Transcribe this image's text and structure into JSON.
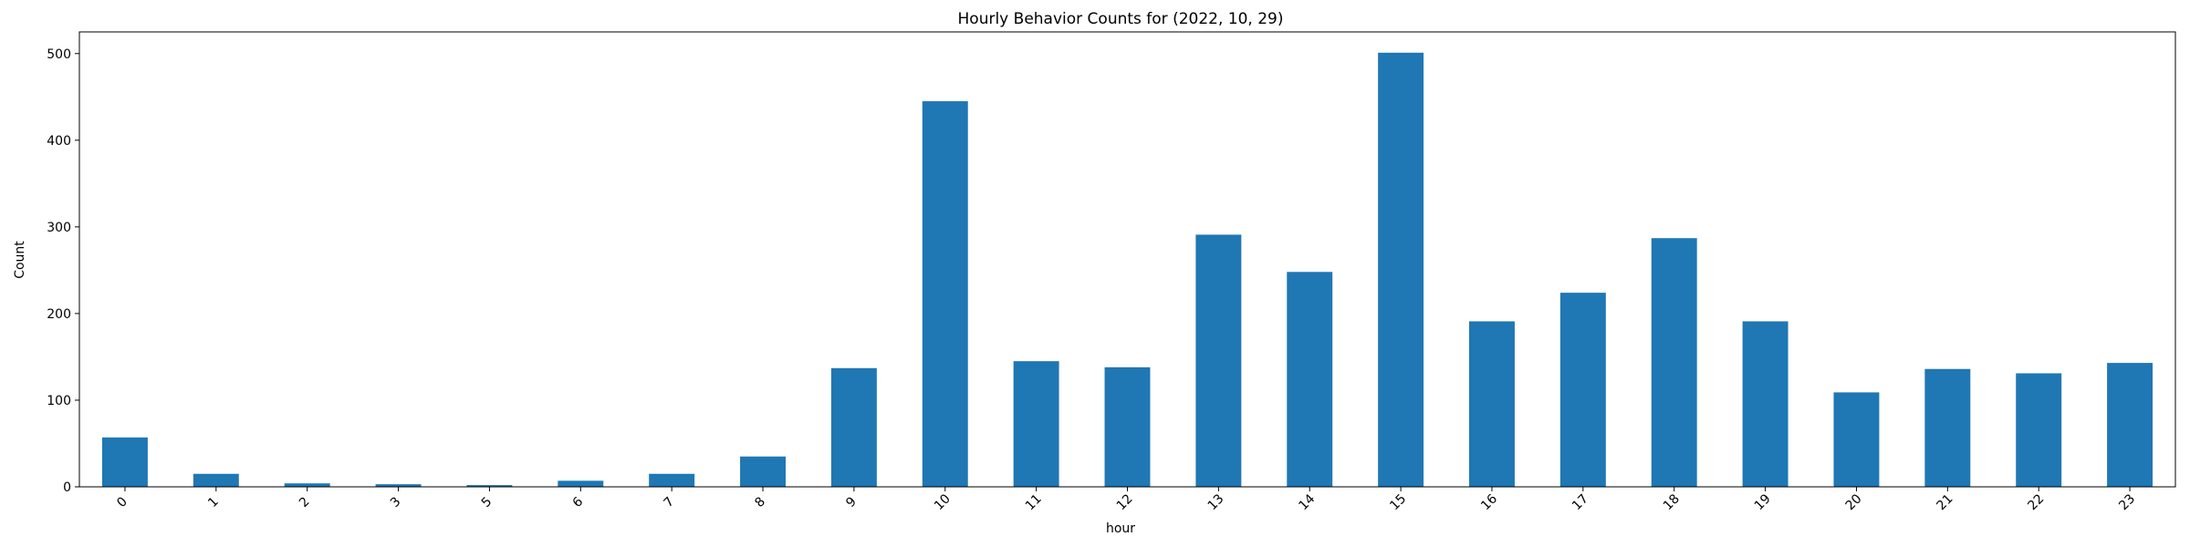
{
  "chart_data": {
    "type": "bar",
    "title": "Hourly Behavior Counts for (2022, 10, 29)",
    "xlabel": "hour",
    "ylabel": "Count",
    "categories": [
      "0",
      "1",
      "2",
      "3",
      "5",
      "6",
      "7",
      "8",
      "9",
      "10",
      "11",
      "12",
      "13",
      "14",
      "15",
      "16",
      "17",
      "18",
      "19",
      "20",
      "21",
      "22",
      "23"
    ],
    "values": [
      57,
      15,
      4,
      3,
      2,
      7,
      15,
      35,
      137,
      445,
      145,
      138,
      291,
      248,
      501,
      191,
      224,
      287,
      191,
      109,
      136,
      131,
      143
    ],
    "ylim": [
      0,
      525
    ],
    "yticks": [
      0,
      100,
      200,
      300,
      400,
      500
    ],
    "bar_color": "#1f77b4",
    "grid": false,
    "legend": "none"
  }
}
